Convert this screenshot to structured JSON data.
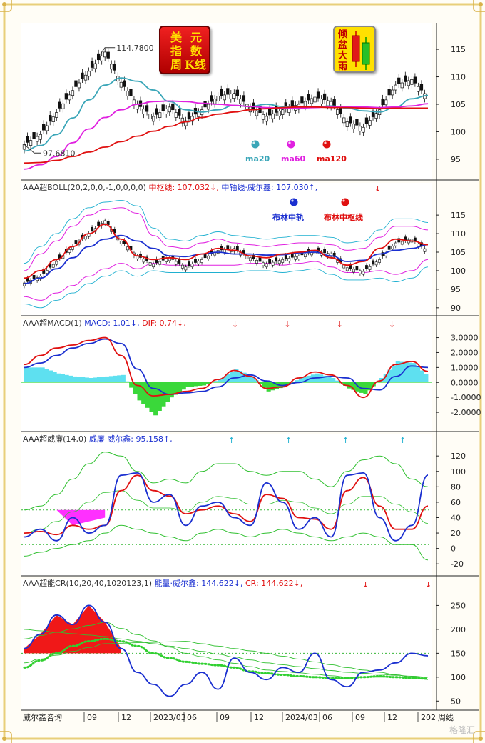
{
  "badge": {
    "title_chars": [
      "美",
      "元",
      "指",
      "数",
      "周",
      "K线"
    ],
    "logo_chars": [
      "倾",
      "盆",
      "大",
      "雨"
    ]
  },
  "footer": {
    "brand": "威尔鑫咨询",
    "x_ticks": [
      "09",
      "12",
      "2023/03",
      "06",
      "09",
      "12",
      "2024/03",
      "06",
      "09",
      "12",
      "202"
    ],
    "right_label": "周线",
    "watermark": "格隆汇"
  },
  "chart_data": [
    {
      "type": "line",
      "panel": "price",
      "annotations": {
        "high": "114.7800",
        "low": "97.6810"
      },
      "ylim": [
        92,
        118
      ],
      "y_ticks": [
        "95",
        "100",
        "105",
        "110",
        "115"
      ],
      "legend": [
        "ma20",
        "ma60",
        "ma120"
      ],
      "series": [
        {
          "name": "ma20",
          "color": "#3aa6b8",
          "values": [
            96.5,
            97.5,
            99.5,
            102.5,
            105.8,
            108.5,
            109.8,
            109.2,
            107.6,
            105.5,
            104.0,
            103.6,
            104.0,
            104.8,
            104.6,
            105.0,
            104.6,
            104.3,
            104.5,
            104.7,
            104.3,
            103.8,
            103.6,
            104.5,
            106.0,
            106.6
          ]
        },
        {
          "name": "ma60",
          "color": "#e020e0",
          "values": [
            93.2,
            94.0,
            95.5,
            98.0,
            100.5,
            102.6,
            104.0,
            105.0,
            105.5,
            105.6,
            105.5,
            105.2,
            105.0,
            104.8,
            104.6,
            104.4,
            104.3,
            104.3,
            104.4,
            104.5,
            104.5,
            104.5,
            104.4,
            104.5,
            104.7,
            105.1
          ]
        },
        {
          "name": "ma120",
          "color": "#e01010",
          "values": [
            94.3,
            94.4,
            94.8,
            95.5,
            96.3,
            97.2,
            98.2,
            99.2,
            100.1,
            101.0,
            101.8,
            102.6,
            103.2,
            103.6,
            104.0,
            104.2,
            104.4,
            104.5,
            104.5,
            104.4,
            104.4,
            104.3,
            104.2,
            104.3,
            104.3,
            104.3
          ]
        }
      ],
      "candles_close": [
        97.7,
        99.5,
        103.5,
        107.5,
        111.0,
        114.5,
        109.0,
        105.0,
        102.8,
        104.5,
        102.0,
        104.0,
        106.5,
        107.0,
        104.5,
        102.8,
        104.0,
        105.0,
        106.3,
        105.5,
        101.8,
        100.8,
        104.0,
        108.5,
        109.5,
        106.3
      ]
    },
    {
      "type": "line",
      "panel": "boll",
      "header": [
        {
          "text": "AAA超BOLL(20,2,0,0,-1,0,0,0,0)",
          "color": "#333333"
        },
        {
          "text": "中枢线: 107.032↓,",
          "color": "#e01010"
        },
        {
          "text": "中轴线·威尔鑫: 107.030↑,",
          "color": "#1a2fd0"
        }
      ],
      "ylim": [
        89,
        121
      ],
      "y_ticks": [
        "90",
        "95",
        "100",
        "105",
        "110",
        "115"
      ],
      "legend": [
        "布林中轨",
        "布林中枢线"
      ],
      "series": [
        {
          "name": "布林中轨",
          "color": "#1a2fd0",
          "values": [
            96.5,
            98.0,
            100.5,
            103.5,
            106.5,
            108.5,
            109.5,
            108.0,
            106.0,
            104.0,
            103.8,
            104.5,
            105.0,
            104.5,
            104.5,
            104.2,
            104.3,
            104.8,
            105.0,
            104.0,
            102.5,
            102.8,
            104.5,
            105.5,
            106.0,
            107.0
          ]
        },
        {
          "name": "布林中枢线",
          "color": "#e01010",
          "values": [
            98.0,
            100.0,
            103.0,
            106.5,
            110.0,
            112.5,
            108.5,
            104.0,
            103.0,
            103.5,
            103.0,
            104.5,
            106.0,
            105.5,
            104.0,
            103.5,
            104.5,
            105.0,
            105.5,
            103.5,
            101.5,
            102.5,
            106.0,
            108.5,
            108.0,
            107.0
          ]
        }
      ],
      "bands_upper": [
        100.0,
        104.5,
        108.0,
        112.0,
        115.0,
        116.5,
        117.0,
        115.5,
        109.5,
        106.5,
        106.0,
        107.5,
        108.5,
        107.5,
        107.0,
        106.5,
        107.0,
        107.5,
        107.5,
        107.0,
        105.5,
        106.0,
        109.0,
        112.0,
        112.0,
        111.0
      ],
      "bands_lower": [
        93.0,
        92.0,
        94.0,
        96.0,
        98.5,
        100.5,
        102.0,
        100.5,
        102.0,
        101.5,
        101.5,
        101.5,
        101.5,
        101.5,
        102.0,
        102.0,
        101.5,
        102.0,
        102.5,
        101.0,
        99.5,
        99.5,
        100.0,
        99.0,
        100.0,
        103.0
      ]
    },
    {
      "type": "line",
      "panel": "macd",
      "header": [
        {
          "text": "AAA超MACD(1)",
          "color": "#333333"
        },
        {
          "text": "MACD: 1.01↓,",
          "color": "#1a2fd0"
        },
        {
          "text": "DIF: 0.74↓,",
          "color": "#e01010"
        }
      ],
      "ylim": [
        -3.0,
        3.6
      ],
      "y_ticks": [
        "3.0000",
        "2.0000",
        "1.0000",
        "0.0000",
        "-1.0000",
        "-2.0000"
      ],
      "series": [
        {
          "name": "MACD",
          "color": "#1a2fd0",
          "values": [
            1.0,
            1.3,
            1.8,
            2.3,
            2.6,
            2.9,
            2.6,
            0.9,
            -0.4,
            -0.8,
            -0.7,
            -0.6,
            -0.3,
            0.3,
            0.5,
            0.1,
            -0.2,
            0.0,
            0.3,
            0.4,
            0.3,
            -0.4,
            -0.5,
            0.4,
            1.1,
            1.0
          ]
        },
        {
          "name": "DIF",
          "color": "#e01010",
          "values": [
            1.2,
            1.8,
            2.3,
            2.5,
            2.8,
            3.0,
            1.8,
            -0.2,
            -0.9,
            -0.8,
            -0.6,
            -0.4,
            0.2,
            0.8,
            0.4,
            -0.4,
            -0.3,
            0.3,
            0.7,
            0.5,
            -0.2,
            -1.0,
            0.1,
            1.2,
            1.4,
            0.74
          ]
        }
      ],
      "histogram": [
        1.0,
        1.0,
        0.6,
        0.4,
        0.3,
        0.4,
        0.5,
        -1.2,
        -2.2,
        -1.0,
        -0.3,
        -0.2,
        0.2,
        0.9,
        0.4,
        -0.6,
        -0.3,
        0.3,
        0.6,
        0.3,
        -0.4,
        -0.8,
        0.3,
        1.4,
        1.3,
        0.3
      ],
      "arrows_count": 4
    },
    {
      "type": "line",
      "panel": "wr",
      "header": [
        {
          "text": "AAA超威廉(14,0)",
          "color": "#333333"
        },
        {
          "text": "威廉·威尔鑫: 95.158↑,",
          "color": "#1a2fd0"
        }
      ],
      "ylim": [
        -30,
        135
      ],
      "y_ticks": [
        "120",
        "100",
        "80",
        "60",
        "40",
        "20",
        "0",
        "-20"
      ],
      "guides": [
        90,
        50,
        5
      ],
      "series": [
        {
          "name": "威廉·威尔鑫",
          "color": "#1a2fd0",
          "values": [
            15,
            25,
            10,
            40,
            20,
            30,
            95,
            98,
            60,
            70,
            30,
            55,
            60,
            40,
            30,
            85,
            60,
            25,
            40,
            15,
            95,
            98,
            40,
            10,
            30,
            95.158
          ]
        },
        {
          "name": "signal",
          "color": "#e01010",
          "values": [
            20,
            22,
            18,
            30,
            25,
            30,
            75,
            95,
            75,
            68,
            45,
            50,
            55,
            45,
            35,
            70,
            65,
            40,
            38,
            25,
            75,
            92,
            55,
            25,
            25,
            55
          ]
        }
      ],
      "bands_upper": [
        50,
        55,
        70,
        90,
        110,
        125,
        120,
        100,
        85,
        90,
        85,
        100,
        110,
        110,
        100,
        95,
        100,
        100,
        90,
        80,
        100,
        115,
        120,
        110,
        90,
        80
      ],
      "bands_lower": [
        -10,
        -5,
        0,
        5,
        10,
        20,
        30,
        25,
        20,
        15,
        10,
        20,
        25,
        20,
        15,
        20,
        25,
        20,
        15,
        10,
        15,
        20,
        15,
        5,
        5,
        -15
      ],
      "arrows_count": 4
    },
    {
      "type": "line",
      "panel": "cr",
      "header": [
        {
          "text": "AAA超能CR(10,20,40,1020123,1)",
          "color": "#333333"
        },
        {
          "text": "能量·威尔鑫: 144.622↓,",
          "color": "#1a2fd0"
        },
        {
          "text": "CR: 144.622↓,",
          "color": "#e01010"
        }
      ],
      "ylim": [
        40,
        285
      ],
      "y_ticks": [
        "250",
        "200",
        "150",
        "100",
        "50"
      ],
      "guides": [
        150
      ],
      "series": [
        {
          "name": "能量·威尔鑫",
          "color": "#1a2fd0",
          "values": [
            160,
            190,
            230,
            210,
            250,
            215,
            160,
            110,
            85,
            60,
            85,
            110,
            75,
            140,
            110,
            95,
            120,
            110,
            150,
            95,
            80,
            110,
            115,
            130,
            150,
            144.622
          ]
        },
        {
          "name": "ma-dot",
          "color": "#30d030",
          "values": [
            120,
            135,
            150,
            165,
            175,
            180,
            175,
            165,
            150,
            140,
            132,
            128,
            125,
            120,
            112,
            108,
            105,
            102,
            100,
            98,
            98,
            100,
            102,
            100,
            98,
            97
          ]
        }
      ],
      "arrows_count": 2
    }
  ]
}
